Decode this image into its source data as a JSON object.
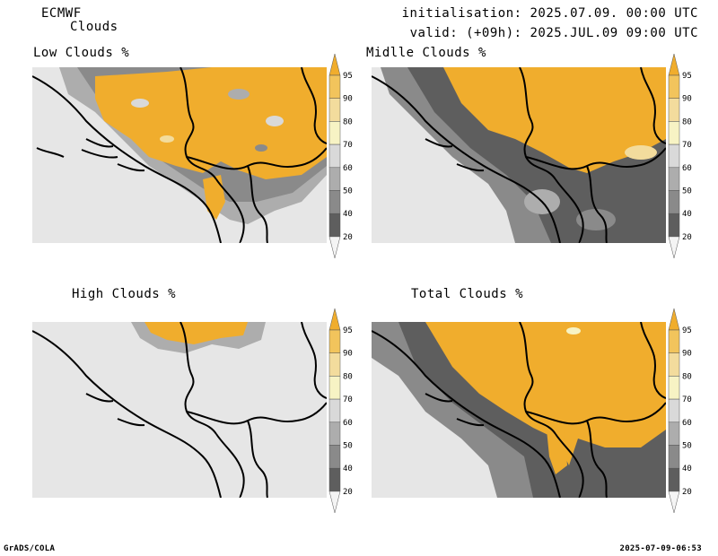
{
  "header": {
    "model": "ECMWF",
    "product": "Clouds",
    "initialisation": "initialisation: 2025.07.09. 00:00 UTC",
    "valid": "valid: (+09h): 2025.JUL.09 09:00 UTC"
  },
  "panels": [
    {
      "title": "Low Clouds %"
    },
    {
      "title": "Midlle Clouds %"
    },
    {
      "title": "High Clouds %"
    },
    {
      "title": "Total Clouds %"
    }
  ],
  "colorbar": {
    "levels": [
      "95",
      "90",
      "80",
      "70",
      "60",
      "50",
      "40",
      "20"
    ],
    "colors": {
      "c100": "#f0ad2d",
      "c90": "#f2c45c",
      "c80": "#f3dc9d",
      "c70": "#f7f3c4",
      "c60": "#d9d9d9",
      "c50": "#adadad",
      "c40": "#8a8a8a",
      "c30": "#5e5e5e",
      "c20": "#f4f4f4",
      "background": "#e6e6e6",
      "border": "#000000"
    }
  },
  "footer": {
    "left": "GrADS/COLA",
    "right": "2025-07-09-06:53"
  }
}
